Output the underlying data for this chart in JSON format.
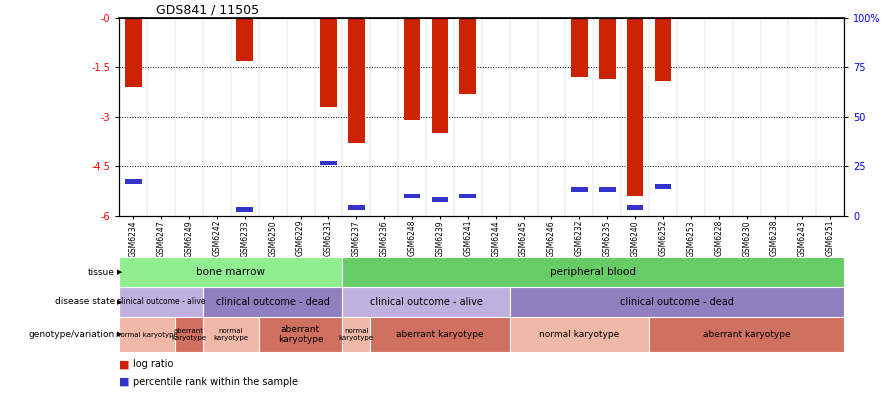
{
  "title": "GDS841 / 11505",
  "samples": [
    "GSM6234",
    "GSM6247",
    "GSM6249",
    "GSM6242",
    "GSM6233",
    "GSM6250",
    "GSM6229",
    "GSM6231",
    "GSM6237",
    "GSM6236",
    "GSM6248",
    "GSM6239",
    "GSM6241",
    "GSM6244",
    "GSM6245",
    "GSM6246",
    "GSM6232",
    "GSM6235",
    "GSM6240",
    "GSM6252",
    "GSM6253",
    "GSM6228",
    "GSM6230",
    "GSM6238",
    "GSM6243",
    "GSM6251"
  ],
  "log_ratio": [
    -2.1,
    0,
    0,
    0,
    -1.3,
    0,
    0,
    -2.7,
    -3.8,
    0,
    -3.1,
    -3.5,
    -2.3,
    0,
    0,
    0,
    -1.8,
    -1.85,
    -5.4,
    -1.9,
    0,
    0,
    0,
    0,
    0,
    0
  ],
  "percentile_rank_y": [
    -4.95,
    0,
    0,
    0,
    -5.8,
    0,
    0,
    -4.4,
    -5.75,
    0,
    -5.4,
    -5.5,
    -5.4,
    0,
    0,
    0,
    -5.2,
    -5.2,
    -5.75,
    -5.1,
    0,
    0,
    0,
    0,
    0,
    0
  ],
  "has_percentile": [
    1,
    0,
    0,
    0,
    1,
    0,
    0,
    1,
    1,
    0,
    1,
    1,
    1,
    0,
    0,
    0,
    1,
    1,
    1,
    1,
    0,
    0,
    0,
    0,
    0,
    0
  ],
  "ylim_left": [
    -6,
    0
  ],
  "yticks_left": [
    0,
    -1.5,
    -3,
    -4.5,
    -6
  ],
  "ytick_labels_left": [
    "-0",
    "-1.5",
    "-3",
    "-4.5",
    "-6"
  ],
  "yticks_right": [
    100,
    75,
    50,
    25,
    0
  ],
  "ytick_labels_right": [
    "100%",
    "75",
    "50",
    "25",
    "0"
  ],
  "tissue_groups": [
    {
      "label": "bone marrow",
      "start": 0,
      "end": 8,
      "color": "#90EE90"
    },
    {
      "label": "peripheral blood",
      "start": 8,
      "end": 26,
      "color": "#66CC66"
    }
  ],
  "disease_groups": [
    {
      "label": "clinical outcome - alive",
      "start": 0,
      "end": 3,
      "color": "#C0B0E0"
    },
    {
      "label": "clinical outcome - dead",
      "start": 3,
      "end": 8,
      "color": "#9080C0"
    },
    {
      "label": "clinical outcome - alive",
      "start": 8,
      "end": 14,
      "color": "#C0B0E0"
    },
    {
      "label": "clinical outcome - dead",
      "start": 14,
      "end": 26,
      "color": "#9080C0"
    }
  ],
  "genotype_groups": [
    {
      "label": "normal karyotype",
      "start": 0,
      "end": 2,
      "color": "#F0B8A8"
    },
    {
      "label": "aberrant\nkaryotype",
      "start": 2,
      "end": 3,
      "color": "#D07060"
    },
    {
      "label": "normal\nkaryotype",
      "start": 3,
      "end": 5,
      "color": "#F0B8A8"
    },
    {
      "label": "aberrant\nkaryotype",
      "start": 5,
      "end": 8,
      "color": "#D07060"
    },
    {
      "label": "normal\nkaryotype",
      "start": 8,
      "end": 9,
      "color": "#F0B8A8"
    },
    {
      "label": "aberrant karyotype",
      "start": 9,
      "end": 14,
      "color": "#D07060"
    },
    {
      "label": "normal karyotype",
      "start": 14,
      "end": 19,
      "color": "#F0B8A8"
    },
    {
      "label": "aberrant karyotype",
      "start": 19,
      "end": 26,
      "color": "#D07060"
    }
  ],
  "bar_color": "#CC2200",
  "percentile_color": "#3333CC",
  "bg_color": "#FFFFFF",
  "grid_color": "#000000"
}
